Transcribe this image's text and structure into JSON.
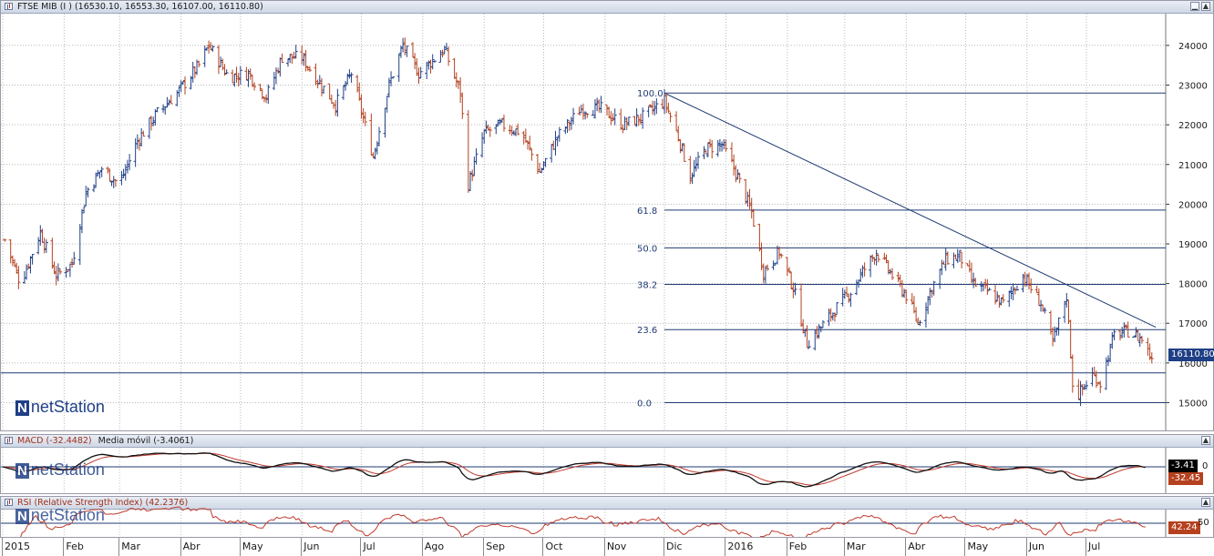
{
  "main_panel": {
    "title": "FTSE MIB (I ) (16530.10, 16553.30, 16107.00, 16110.80)",
    "last_price_badge": "16110.80",
    "logo_text": "netStation",
    "logo_mark": "N"
  },
  "macd_panel": {
    "title": "MACD (-32.4482)",
    "title2": "Media móvil (-3.4061)",
    "badge_signal": "-3.41",
    "badge_macd": "-32.45",
    "zero_label": "0",
    "logo_text": "netStation",
    "logo_mark": "N"
  },
  "rsi_panel": {
    "title": "RSI (Relative Strength Index) (42.2376)",
    "badge": "42.24",
    "level_label": "50",
    "logo_text": "netStation",
    "logo_mark": "N"
  },
  "x_axis": {
    "months": [
      "2015",
      "Feb",
      "Mar",
      "Abr",
      "May",
      "Jun",
      "Jul",
      "Ago",
      "Sep",
      "Oct",
      "Nov",
      "Dic",
      "2016",
      "Feb",
      "Mar",
      "Abr",
      "May",
      "Jun",
      "Jul"
    ]
  },
  "chart_data": {
    "type": "ohlc",
    "title": "FTSE MIB (I ) (16530.10, 16553.30, 16107.00, 16110.80)",
    "y_axis": {
      "ticks": [
        15000,
        16000,
        17000,
        18000,
        19000,
        20000,
        21000,
        22000,
        23000,
        24000
      ],
      "range": [
        14300,
        24800
      ],
      "position": "right"
    },
    "x_axis": {
      "ticks": [
        "2015",
        "Feb",
        "Mar",
        "Abr",
        "May",
        "Jun",
        "Jul",
        "Ago",
        "Sep",
        "Oct",
        "Nov",
        "Dic",
        "2016",
        "Feb",
        "Mar",
        "Abr",
        "May",
        "Jun",
        "Jul"
      ]
    },
    "close_path_anchors": [
      [
        "2015-01-02",
        19100
      ],
      [
        "2015-01-10",
        18000
      ],
      [
        "2015-01-20",
        19300
      ],
      [
        "2015-01-28",
        18200
      ],
      [
        "2015-02-05",
        18500
      ],
      [
        "2015-02-12",
        20300
      ],
      [
        "2015-02-20",
        20900
      ],
      [
        "2015-03-01",
        20500
      ],
      [
        "2015-03-10",
        21600
      ],
      [
        "2015-03-20",
        22300
      ],
      [
        "2015-03-30",
        22800
      ],
      [
        "2015-04-10",
        23500
      ],
      [
        "2015-04-15",
        24000
      ],
      [
        "2015-04-25",
        23200
      ],
      [
        "2015-05-05",
        23300
      ],
      [
        "2015-05-14",
        22700
      ],
      [
        "2015-05-22",
        23700
      ],
      [
        "2015-06-01",
        23700
      ],
      [
        "2015-06-08",
        23200
      ],
      [
        "2015-06-18",
        22500
      ],
      [
        "2015-06-26",
        23300
      ],
      [
        "2015-07-07",
        21200
      ],
      [
        "2015-07-15",
        23000
      ],
      [
        "2015-07-22",
        24000
      ],
      [
        "2015-07-30",
        23300
      ],
      [
        "2015-08-12",
        23900
      ],
      [
        "2015-08-20",
        22800
      ],
      [
        "2015-08-24",
        20500
      ],
      [
        "2015-09-01",
        21800
      ],
      [
        "2015-09-10",
        22000
      ],
      [
        "2015-09-20",
        21800
      ],
      [
        "2015-09-29",
        20800
      ],
      [
        "2015-10-08",
        21700
      ],
      [
        "2015-10-20",
        22400
      ],
      [
        "2015-10-30",
        22400
      ],
      [
        "2015-11-10",
        22000
      ],
      [
        "2015-11-20",
        22200
      ],
      [
        "2015-12-01",
        22600
      ],
      [
        "2015-12-08",
        21700
      ],
      [
        "2015-12-14",
        20700
      ],
      [
        "2015-12-22",
        21400
      ],
      [
        "2015-12-30",
        21500
      ],
      [
        "2016-01-06",
        20800
      ],
      [
        "2016-01-14",
        19800
      ],
      [
        "2016-01-20",
        18300
      ],
      [
        "2016-01-28",
        18800
      ],
      [
        "2016-02-04",
        17900
      ],
      [
        "2016-02-11",
        16500
      ],
      [
        "2016-02-18",
        16900
      ],
      [
        "2016-02-26",
        17400
      ],
      [
        "2016-03-04",
        17800
      ],
      [
        "2016-03-10",
        18300
      ],
      [
        "2016-03-17",
        18800
      ],
      [
        "2016-03-25",
        18200
      ],
      [
        "2016-04-01",
        17700
      ],
      [
        "2016-04-07",
        17000
      ],
      [
        "2016-04-14",
        17900
      ],
      [
        "2016-04-21",
        18600
      ],
      [
        "2016-04-28",
        18700
      ],
      [
        "2016-05-05",
        18000
      ],
      [
        "2016-05-12",
        17800
      ],
      [
        "2016-05-20",
        17500
      ],
      [
        "2016-05-30",
        18200
      ],
      [
        "2016-06-08",
        17500
      ],
      [
        "2016-06-14",
        16500
      ],
      [
        "2016-06-21",
        17700
      ],
      [
        "2016-06-24",
        15500
      ],
      [
        "2016-06-27",
        15200
      ],
      [
        "2016-07-04",
        15700
      ],
      [
        "2016-07-08",
        15500
      ],
      [
        "2016-07-15",
        16700
      ],
      [
        "2016-07-22",
        16800
      ],
      [
        "2016-07-29",
        16600
      ],
      [
        "2016-08-03",
        16110.8
      ]
    ],
    "fibonacci": {
      "high": 22800,
      "low": 15000,
      "levels": [
        {
          "label": "100.0",
          "value": 22800
        },
        {
          "label": "61.8",
          "value": 19850
        },
        {
          "label": "50.0",
          "value": 18900
        },
        {
          "label": "38.2",
          "value": 17980
        },
        {
          "label": "23.6",
          "value": 16840
        },
        {
          "label": "0.0",
          "value": 15000
        }
      ]
    },
    "horizontal_support": 15750,
    "trendline": {
      "from": [
        "2015-12-01",
        22800
      ],
      "to": [
        "2016-08-05",
        16900
      ]
    },
    "last_close": 16110.8,
    "indicators": {
      "macd": {
        "value": -32.4482,
        "signal": -3.4061,
        "zero_line": 0
      },
      "rsi": {
        "value": 42.2376,
        "level": 50
      }
    },
    "colors": {
      "up": "#1f3f86",
      "down": "#b5411f",
      "fib_line": "#1f3b73",
      "trend": "#1f3b73",
      "macd_line": "#111111",
      "signal_line": "#c0392b",
      "rsi_line": "#c0392b"
    }
  }
}
